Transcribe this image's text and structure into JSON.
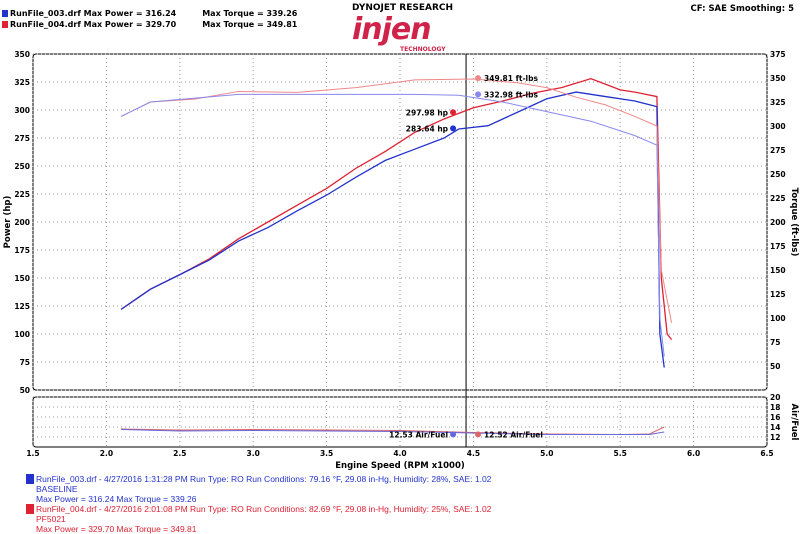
{
  "header": {
    "runs": [
      {
        "file": "RunFile_003.drf",
        "max_power": "Max Power = 316.24",
        "max_torque": "Max Torque = 339.26",
        "color": "#2233cc"
      },
      {
        "file": "RunFile_004.drf",
        "max_power": "Max Power = 329.70",
        "max_torque": "Max Torque = 349.81",
        "color": "#dd2233"
      }
    ],
    "brand_top": "DYNOJET RESEARCH",
    "logo": "injen",
    "logo_sub": "TECHNOLOGY",
    "settings": "CF: SAE  Smoothing: 5"
  },
  "legend": [
    {
      "line1": "RunFile_003.drf - 4/27/2016 1:31:28 PM  Run Type: RO  Run Conditions: 79.16 °F, 29.08 in-Hg,  Humidity:  28%,  SAE: 1.02",
      "line2": "BASELINE",
      "line3": "Max Power = 316.24  Max Torque = 339.26",
      "color": "#2233cc"
    },
    {
      "line1": "RunFile_004.drf - 4/27/2016 2:01:08 PM  Run Type: RO  Run Conditions: 82.69 °F, 29.08 in-Hg,  Humidity:  25%,  SAE: 1.02",
      "line2": "PF5021",
      "line3": "Max Power = 329.70  Max Torque = 349.81",
      "color": "#dd2233"
    }
  ],
  "chart_data": {
    "type": "line",
    "xlabel": "Engine Speed (RPM x1000)",
    "ylabel": "Power (hp)",
    "y2label": "Torque (ft-lbs)",
    "y3label": "Air/Fuel",
    "xlim": [
      1.5,
      6.5
    ],
    "ylim": [
      50,
      350
    ],
    "y2lim": [
      25,
      375
    ],
    "y3lim": [
      10,
      20
    ],
    "xticks": [
      "1.5",
      "2.0",
      "2.5",
      "3.0",
      "3.5",
      "4.0",
      "4.5",
      "5.0",
      "5.5",
      "6.0",
      "6.5"
    ],
    "yticks": [
      "50",
      "75",
      "100",
      "125",
      "150",
      "175",
      "200",
      "225",
      "250",
      "275",
      "300",
      "325",
      "350"
    ],
    "y2ticks": [
      "50",
      "75",
      "100",
      "125",
      "150",
      "175",
      "200",
      "225",
      "250",
      "275",
      "300",
      "325",
      "350",
      "375"
    ],
    "y3ticks": [
      "12",
      "14",
      "16",
      "18",
      "20"
    ],
    "grid": true,
    "cursor_x": 4.45,
    "series": [
      {
        "name": "RunFile_004.drf",
        "kind": "power",
        "color": "#dd2233",
        "x": [
          2.1,
          2.3,
          2.5,
          2.7,
          2.9,
          3.1,
          3.3,
          3.5,
          3.7,
          3.9,
          4.1,
          4.3,
          4.5,
          4.7,
          4.9,
          5.1,
          5.3,
          5.4,
          5.5,
          5.6,
          5.75,
          5.78,
          5.82,
          5.85
        ],
        "y": [
          122,
          140,
          153,
          167,
          185,
          200,
          215,
          230,
          248,
          263,
          280,
          292,
          302,
          308,
          315,
          320,
          328,
          323,
          318,
          316,
          312,
          150,
          100,
          95
        ]
      },
      {
        "name": "RunFile_003.drf",
        "kind": "power",
        "color": "#2233cc",
        "x": [
          2.1,
          2.3,
          2.5,
          2.7,
          2.9,
          3.1,
          3.3,
          3.5,
          3.7,
          3.9,
          4.1,
          4.3,
          4.4,
          4.6,
          4.8,
          5.0,
          5.2,
          5.4,
          5.6,
          5.75,
          5.77,
          5.8
        ],
        "y": [
          122,
          140,
          153,
          166,
          183,
          195,
          210,
          224,
          240,
          255,
          265,
          275,
          283,
          286,
          298,
          310,
          316,
          312,
          308,
          303,
          100,
          70
        ]
      },
      {
        "name": "RunFile_004.drf",
        "kind": "torque",
        "color": "#ee8888",
        "x": [
          2.1,
          2.3,
          2.6,
          2.9,
          3.3,
          3.7,
          4.1,
          4.5,
          4.8,
          5.0,
          5.2,
          5.4,
          5.6,
          5.75,
          5.78,
          5.85
        ],
        "y": [
          310,
          325,
          328,
          336,
          335,
          340,
          348,
          349,
          345,
          340,
          330,
          322,
          310,
          300,
          150,
          95
        ]
      },
      {
        "name": "RunFile_003.drf",
        "kind": "torque",
        "color": "#8888ee",
        "x": [
          2.1,
          2.3,
          2.9,
          3.3,
          3.7,
          4.1,
          4.4,
          4.7,
          5.0,
          5.3,
          5.6,
          5.75,
          5.77,
          5.8
        ],
        "y": [
          310,
          325,
          333,
          333,
          333,
          333,
          332,
          325,
          315,
          305,
          290,
          280,
          100,
          60
        ]
      },
      {
        "name": "RunFile_004.drf",
        "kind": "afr",
        "color": "#dd6666",
        "x": [
          2.1,
          2.5,
          3.0,
          3.5,
          4.0,
          4.5,
          5.0,
          5.5,
          5.7,
          5.8
        ],
        "y": [
          13.6,
          13.4,
          13.5,
          13.4,
          13.3,
          12.9,
          12.6,
          12.5,
          12.6,
          14.0
        ]
      },
      {
        "name": "RunFile_003.drf",
        "kind": "afr",
        "color": "#6666dd",
        "x": [
          2.1,
          2.5,
          3.0,
          3.5,
          4.0,
          4.5,
          5.0,
          5.5,
          5.7,
          5.8
        ],
        "y": [
          13.5,
          13.2,
          13.3,
          13.2,
          13.1,
          12.8,
          12.5,
          12.5,
          12.5,
          13.0
        ]
      }
    ],
    "annotations": [
      {
        "text": "349.81 ft-lbs",
        "axis": "torque",
        "y": 349.81,
        "color": "#ee8888"
      },
      {
        "text": "332.98 ft-lbs",
        "axis": "torque",
        "y": 332.98,
        "color": "#8888ee"
      },
      {
        "text": "297.98 hp",
        "axis": "power",
        "y": 297.98,
        "color": "#dd2233"
      },
      {
        "text": "283.64 hp",
        "axis": "power",
        "y": 283.64,
        "color": "#2233cc"
      },
      {
        "text": "12.53 Air/Fuel",
        "axis": "afr",
        "y": 12.53,
        "color": "#6666dd"
      },
      {
        "text": "12.52 Air/Fuel",
        "axis": "afr",
        "y": 12.52,
        "color": "#dd6666"
      }
    ]
  }
}
